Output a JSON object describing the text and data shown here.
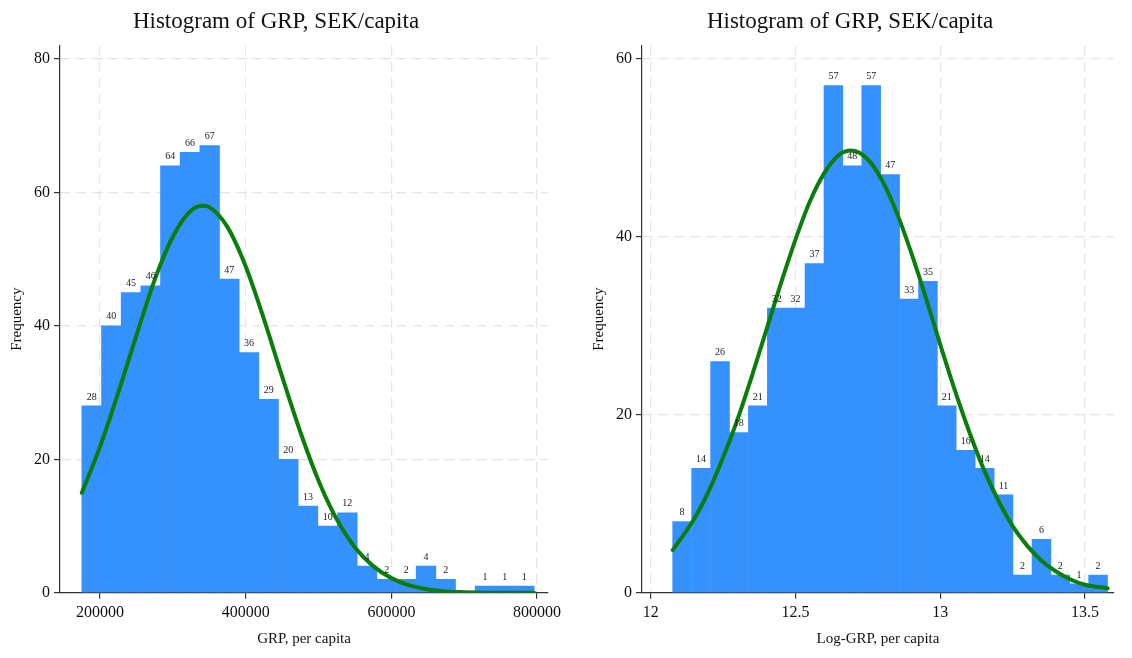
{
  "chart_data": [
    {
      "type": "histogram",
      "title": "Histogram of GRP, SEK/capita",
      "xlabel": "GRP, per capita",
      "ylabel": "Frequency",
      "xlim": [
        145000,
        815000
      ],
      "xticks": [
        200000,
        400000,
        600000,
        800000
      ],
      "ylim": [
        0,
        82
      ],
      "yticks": [
        0,
        20,
        40,
        60,
        80
      ],
      "grid": true,
      "series": [
        {
          "color": "#3592fd",
          "bins": [
            175000,
            202000,
            229000,
            256000,
            283000,
            310000,
            337000,
            364000,
            391000,
            418000,
            445000,
            472000,
            499000,
            526000,
            553000,
            580000,
            607000,
            634000,
            661000,
            688000,
            715000,
            742000,
            769000,
            796000
          ],
          "values": [
            28,
            40,
            45,
            46,
            64,
            66,
            67,
            47,
            36,
            29,
            20,
            13,
            10,
            12,
            4,
            2,
            2,
            4,
            2,
            0,
            1,
            1,
            1
          ],
          "value_labels": [
            "28",
            "40",
            "45",
            "46",
            "64",
            "66",
            "67",
            "47",
            "36",
            "29",
            "20",
            "13",
            "10",
            "12",
            "4",
            "2",
            "2",
            "4",
            "2",
            null,
            "1",
            "1",
            "1"
          ]
        },
        {
          "type": "line",
          "color": "#0a7d0a",
          "x": [
            175000,
            200000,
            225000,
            250000,
            275000,
            300000,
            325000,
            341000,
            350000,
            375000,
            400000,
            425000,
            450000,
            475000,
            500000,
            525000,
            550000,
            575000,
            600000,
            625000,
            650000,
            675000,
            700000,
            750000,
            796000
          ],
          "values": [
            15,
            21.9,
            30,
            38.6,
            46.9,
            53.4,
            57.3,
            58,
            57.8,
            54.8,
            48.9,
            41,
            32.4,
            24.1,
            16.8,
            11,
            6.8,
            4,
            2.2,
            1.1,
            0.5,
            0.2,
            0.1,
            0,
            0
          ]
        }
      ]
    },
    {
      "type": "histogram",
      "title": "Histogram of GRP, SEK/capita",
      "xlabel": "Log-GRP, per capita",
      "ylabel": "Frequency",
      "xlim": [
        11.97,
        13.6
      ],
      "xticks": [
        12,
        12.5,
        13,
        13.5
      ],
      "ylim": [
        0,
        61.5
      ],
      "yticks": [
        0,
        20,
        40,
        60
      ],
      "grid": true,
      "series": [
        {
          "data_labels": true,
          "color": "#3592fd",
          "bins": [
            12.076,
            12.141,
            12.207,
            12.272,
            12.337,
            12.403,
            12.468,
            12.533,
            12.598,
            12.664,
            12.729,
            12.794,
            12.86,
            12.925,
            12.99,
            13.055,
            13.121,
            13.186,
            13.251,
            13.317,
            13.382,
            13.447,
            13.512,
            13.578
          ],
          "values": [
            8,
            14,
            26,
            18,
            21,
            32,
            32,
            37,
            57,
            48,
            57,
            47,
            33,
            35,
            21,
            16,
            14,
            11,
            2,
            6,
            2,
            1,
            2
          ]
        },
        {
          "type": "line",
          "color": "#0a7d0a",
          "x": [
            12.076,
            12.15,
            12.2,
            12.25,
            12.3,
            12.35,
            12.4,
            12.45,
            12.5,
            12.55,
            12.6,
            12.65,
            12.692,
            12.75,
            12.8,
            12.85,
            12.9,
            12.95,
            13,
            13.05,
            13.1,
            13.15,
            13.2,
            13.25,
            13.3,
            13.35,
            13.4,
            13.45,
            13.5,
            13.578
          ],
          "values": [
            4.8,
            8.3,
            11.4,
            15.2,
            19.5,
            24.4,
            29.6,
            34.8,
            39.7,
            44,
            47.2,
            49.2,
            49.7,
            48.7,
            46.3,
            42.7,
            38.2,
            33.2,
            27.9,
            22.8,
            18.1,
            13.9,
            10.4,
            7.5,
            5.3,
            3.6,
            2.4,
            1.5,
            0.9,
            0.5
          ]
        }
      ]
    }
  ]
}
